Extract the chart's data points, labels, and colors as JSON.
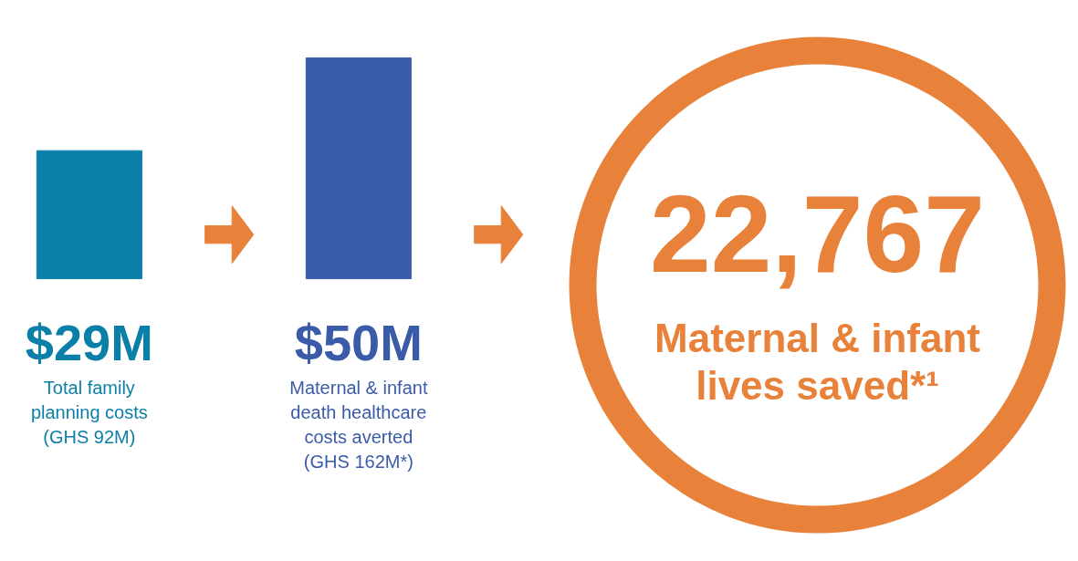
{
  "chart_data": [
    {
      "type": "bar",
      "categories": [
        "Total family planning costs (GHS 92M)",
        "Maternal & infant death healthcare costs averted (GHS 162M*)"
      ],
      "values": [
        29,
        50
      ],
      "colors": [
        "#0a7fa8",
        "#3a5ba8"
      ],
      "value_labels": [
        "$29M",
        "$50M"
      ]
    },
    {
      "type": "other",
      "title": "22,767",
      "subtitle": "Maternal & infant lives saved*¹",
      "color": "#e8813a"
    }
  ]
}
